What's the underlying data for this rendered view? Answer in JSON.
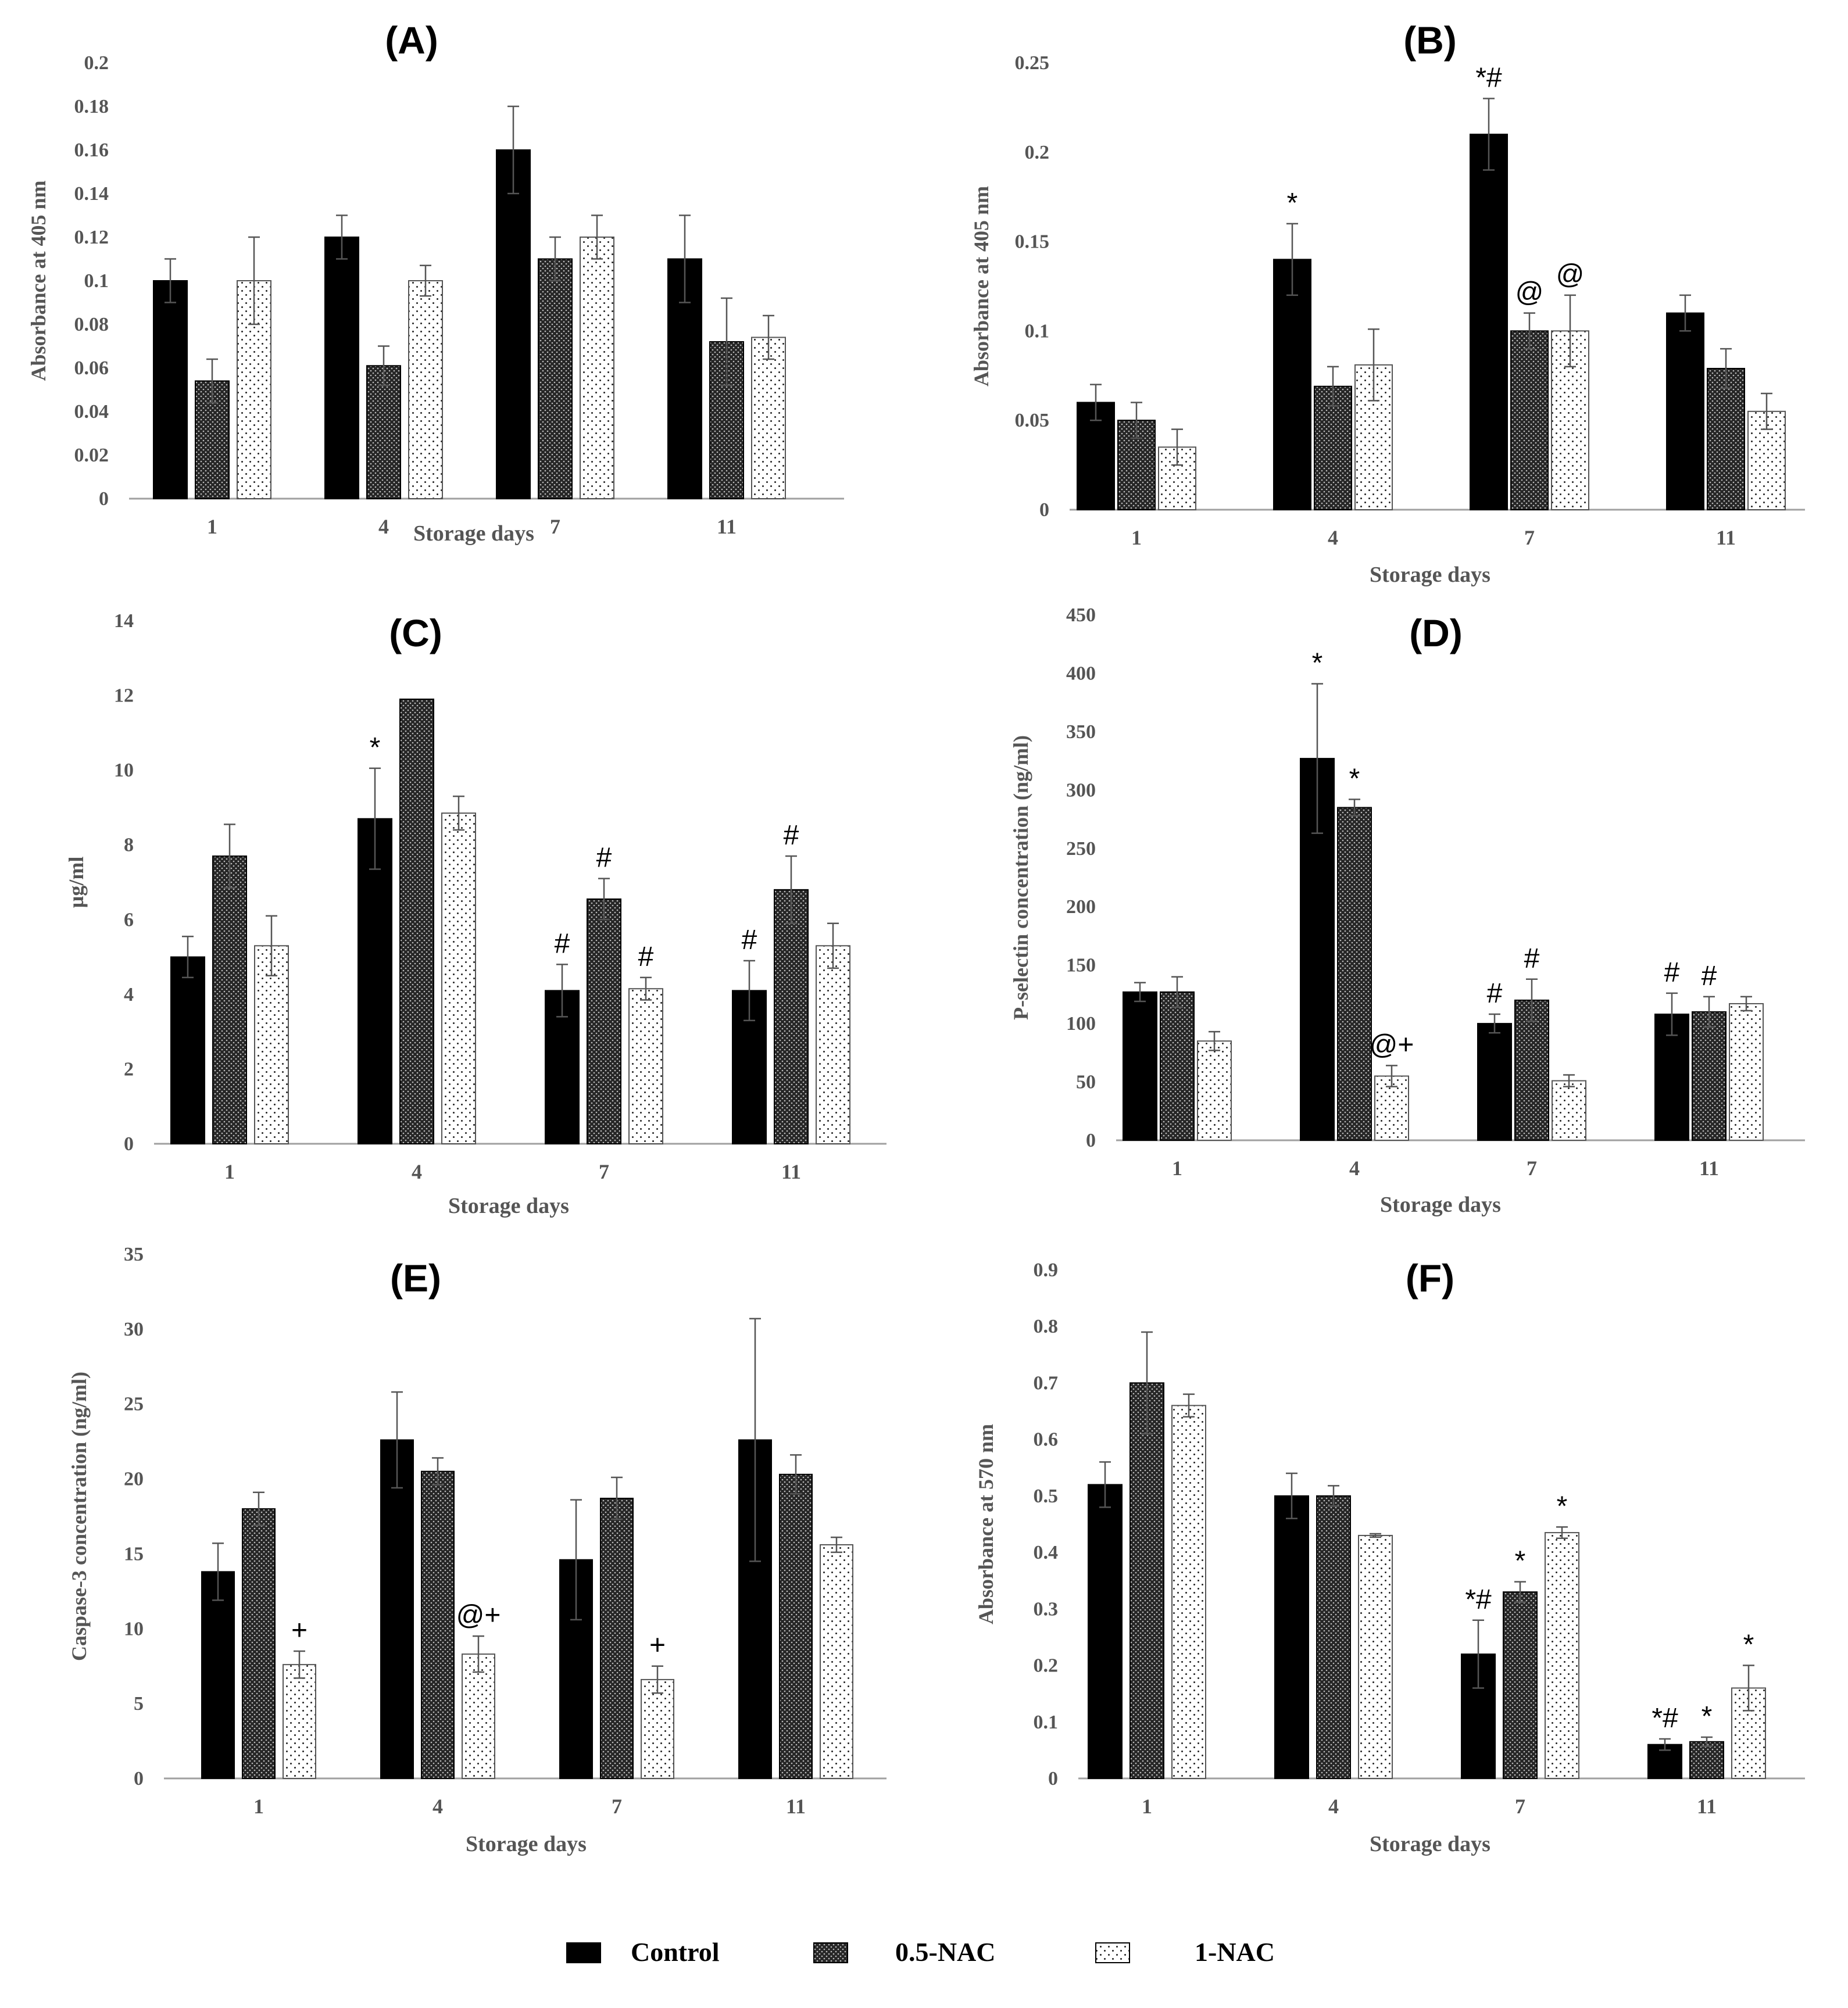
{
  "legend": [
    {
      "name": "Control",
      "pattern": "solid"
    },
    {
      "name": "0.5-NAC",
      "pattern": "dense-dots"
    },
    {
      "name": "1-NAC",
      "pattern": "sparse-dots"
    }
  ],
  "colors": {
    "control": "#000000",
    "nac05": "#2b2b2b",
    "nac1": "#ffffff",
    "axis": "#a0a0a0",
    "text": "#555555"
  },
  "chart_data": [
    {
      "panel": "(A)",
      "type": "bar",
      "title": "(A)",
      "categories": [
        "1",
        "4",
        "7",
        "11"
      ],
      "xlabel": "Storage days",
      "ylabel": "Absorbance  at 405 nm",
      "ylim": [
        0,
        0.2
      ],
      "yticks": [
        "0",
        "0.02",
        "0.04",
        "0.06",
        "0.08",
        "0.1",
        "0.12",
        "0.14",
        "0.16",
        "0.18",
        "0.2"
      ],
      "series": [
        {
          "values": [
            0.1,
            0.12,
            0.16,
            0.11
          ],
          "errors": [
            0.01,
            0.01,
            0.02,
            0.02
          ]
        },
        {
          "values": [
            0.054,
            0.061,
            0.11,
            0.072
          ],
          "errors": [
            0.01,
            0.009,
            0.01,
            0.02
          ]
        },
        {
          "values": [
            0.1,
            0.1,
            0.12,
            0.074
          ],
          "errors": [
            0.02,
            0.007,
            0.01,
            0.01
          ]
        }
      ],
      "annotations": [
        [],
        [],
        [],
        []
      ]
    },
    {
      "panel": "(B)",
      "type": "bar",
      "title": "(B)",
      "categories": [
        "1",
        "4",
        "7",
        "11"
      ],
      "xlabel": "Storage days",
      "ylabel": "Absorbance  at  405 nm",
      "ylim": [
        0,
        0.25
      ],
      "yticks": [
        "0",
        "0.05",
        "0.1",
        "0.15",
        "0.2",
        "0.25"
      ],
      "series": [
        {
          "values": [
            0.06,
            0.14,
            0.21,
            0.11
          ],
          "errors": [
            0.01,
            0.02,
            0.02,
            0.01
          ]
        },
        {
          "values": [
            0.05,
            0.069,
            0.1,
            0.079
          ],
          "errors": [
            0.01,
            0.011,
            0.01,
            0.011
          ]
        },
        {
          "values": [
            0.035,
            0.081,
            0.1,
            0.055
          ],
          "errors": [
            0.01,
            0.02,
            0.02,
            0.01
          ]
        }
      ],
      "annotations": [
        [
          "",
          "",
          ""
        ],
        [
          "*",
          "",
          ""
        ],
        [
          "*#",
          "@",
          "@"
        ],
        [
          "",
          "",
          ""
        ]
      ]
    },
    {
      "panel": "(C)",
      "type": "bar",
      "title": "(C)",
      "categories": [
        "1",
        "4",
        "7",
        "11"
      ],
      "xlabel": "Storage days",
      "ylabel": "µg/ml",
      "ylim": [
        0,
        14
      ],
      "yticks": [
        "0",
        "2",
        "4",
        "6",
        "8",
        "10",
        "12",
        "14"
      ],
      "series": [
        {
          "values": [
            5.0,
            8.7,
            4.1,
            4.1
          ],
          "errors": [
            0.55,
            1.35,
            0.7,
            0.8
          ]
        },
        {
          "values": [
            7.7,
            11.9,
            6.55,
            6.8
          ],
          "errors": [
            0.85,
            0,
            0.55,
            0.9
          ]
        },
        {
          "values": [
            5.3,
            8.85,
            4.15,
            5.3
          ],
          "errors": [
            0.8,
            0.45,
            0.3,
            0.6
          ]
        }
      ],
      "annotations": [
        [
          "",
          "",
          ""
        ],
        [
          "*",
          "",
          ""
        ],
        [
          "#",
          "#",
          "#"
        ],
        [
          "#",
          "#",
          ""
        ]
      ]
    },
    {
      "panel": "(D)",
      "type": "bar",
      "title": "(D)",
      "categories": [
        "1",
        "4",
        "7",
        "11"
      ],
      "xlabel": "Storage days",
      "ylabel": "P-selectin concentration  (ng/ml)",
      "ylim": [
        0,
        450
      ],
      "yticks": [
        "0",
        "50",
        "100",
        "150",
        "200",
        "250",
        "300",
        "350",
        "400",
        "450"
      ],
      "series": [
        {
          "values": [
            127,
            327,
            100,
            108
          ],
          "errors": [
            8,
            64,
            8,
            18
          ]
        },
        {
          "values": [
            127,
            285,
            120,
            110
          ],
          "errors": [
            13,
            7,
            18,
            13
          ]
        },
        {
          "values": [
            85,
            55,
            51,
            117
          ],
          "errors": [
            8,
            9,
            5,
            6
          ]
        }
      ],
      "annotations": [
        [
          "",
          "",
          ""
        ],
        [
          "*",
          "*",
          "@+"
        ],
        [
          "#",
          "#",
          ""
        ],
        [
          "#",
          "#",
          ""
        ]
      ]
    },
    {
      "panel": "(E)",
      "type": "bar",
      "title": "(E)",
      "categories": [
        "1",
        "4",
        "7",
        "11"
      ],
      "xlabel": "Storage days",
      "ylabel": "Caspase-3  concentration  (ng/ml)",
      "ylim": [
        0,
        35
      ],
      "yticks": [
        "0",
        "5",
        "10",
        "15",
        "20",
        "25",
        "30",
        "35"
      ],
      "series": [
        {
          "values": [
            13.8,
            22.6,
            14.6,
            22.6
          ],
          "errors": [
            1.9,
            3.2,
            4.0,
            8.1
          ]
        },
        {
          "values": [
            18.0,
            20.5,
            18.7,
            20.3
          ],
          "errors": [
            1.1,
            0.9,
            1.4,
            1.3
          ]
        },
        {
          "values": [
            7.6,
            8.3,
            6.6,
            15.6
          ],
          "errors": [
            0.9,
            1.2,
            0.9,
            0.5
          ]
        }
      ],
      "annotations": [
        [
          "",
          "",
          "+"
        ],
        [
          "",
          "",
          "@+"
        ],
        [
          "",
          "",
          "+"
        ],
        [
          "",
          "",
          ""
        ]
      ]
    },
    {
      "panel": "(F)",
      "type": "bar",
      "title": "(F)",
      "categories": [
        "1",
        "4",
        "7",
        "11"
      ],
      "xlabel": "Storage days",
      "ylabel": "Absorbance  at  570 nm",
      "ylim": [
        0,
        0.9
      ],
      "yticks": [
        "0",
        "0.1",
        "0.2",
        "0.3",
        "0.4",
        "0.5",
        "0.6",
        "0.7",
        "0.8",
        "0.9"
      ],
      "series": [
        {
          "values": [
            0.52,
            0.5,
            0.22,
            0.06
          ],
          "errors": [
            0.04,
            0.04,
            0.06,
            0.01
          ]
        },
        {
          "values": [
            0.7,
            0.5,
            0.33,
            0.065
          ],
          "errors": [
            0.09,
            0.018,
            0.018,
            0.008
          ]
        },
        {
          "values": [
            0.66,
            0.43,
            0.435,
            0.16
          ],
          "errors": [
            0.02,
            0.003,
            0.01,
            0.04
          ]
        }
      ],
      "annotations": [
        [
          "",
          "",
          ""
        ],
        [
          "",
          "",
          ""
        ],
        [
          "*#",
          "*",
          "*"
        ],
        [
          "*#",
          "*",
          "*"
        ]
      ]
    }
  ]
}
